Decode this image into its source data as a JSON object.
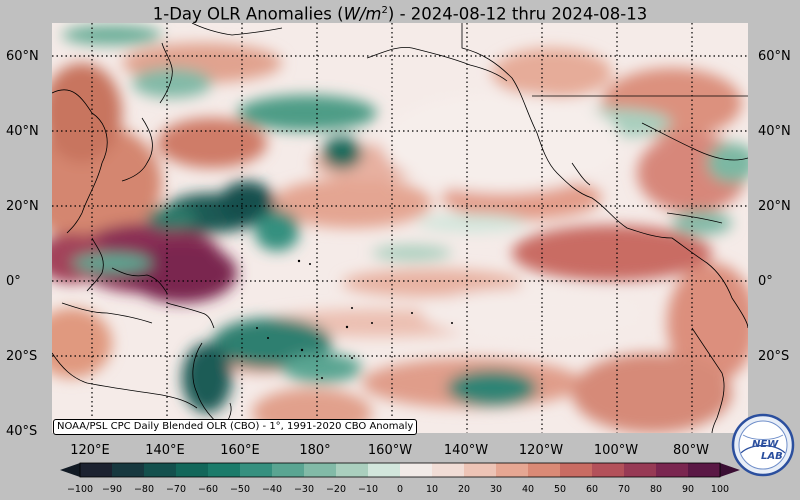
{
  "title": {
    "prefix": "1-Day OLR Anomalies (",
    "unit_base": "W/m",
    "unit_exp": "2",
    "suffix": ") - 2024-08-12 thru 2024-08-13"
  },
  "source_note": "NOAA/PSL CPC Daily Blended OLR (CBO) - 1°, 1991-2020 CBO Anomaly",
  "lat_labels": [
    "60°N",
    "40°N",
    "20°N",
    "0°",
    "20°S",
    "40°S"
  ],
  "lon_labels": [
    "120°E",
    "140°E",
    "160°E",
    "180°",
    "160°W",
    "140°W",
    "120°W",
    "100°W",
    "80°W"
  ],
  "colorbar": {
    "ticks": [
      "−100",
      "−90",
      "−80",
      "−70",
      "−60",
      "−50",
      "−40",
      "−30",
      "−20",
      "−10",
      "0",
      "10",
      "20",
      "30",
      "40",
      "50",
      "60",
      "70",
      "80",
      "90",
      "100"
    ],
    "colors": [
      "#1c2230",
      "#17383f",
      "#13504d",
      "#12675a",
      "#1b7b6a",
      "#36907f",
      "#5aa592",
      "#82baa7",
      "#aacfbe",
      "#d2e6dc",
      "#f2ebe8",
      "#f1ddd6",
      "#edc4b6",
      "#e6a793",
      "#da8a76",
      "#c96c63",
      "#b3515a",
      "#973a55",
      "#7a2650",
      "#5a1845"
    ],
    "low_end_color": "#111a24",
    "high_end_color": "#3a0e33"
  },
  "logo": {
    "text_a": "NEW",
    "text_b": "LAB"
  }
}
